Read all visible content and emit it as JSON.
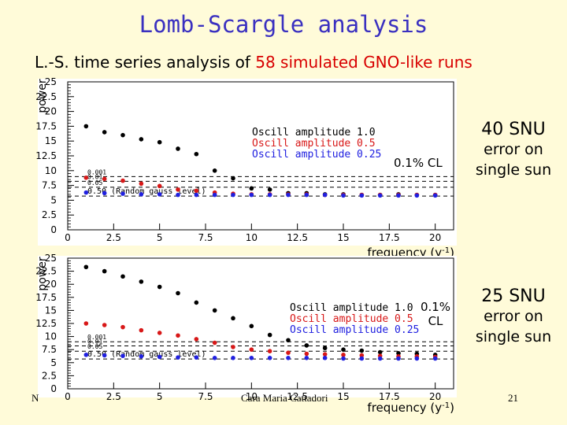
{
  "slide": {
    "title": "Lomb-Scargle analysis",
    "subtitle_prefix": "L.-S. time series analysis of ",
    "subtitle_highlight": "58 simulated GNO-like runs",
    "footer_left": "N",
    "footer_mid": "Cara Maria Cattadori",
    "footer_right": "21"
  },
  "panels": [
    {
      "label_snu": "40 SNU",
      "label_error_1": "error on",
      "label_error_2": "single sun",
      "cl_label": "0.1% CL"
    },
    {
      "label_snu": "25 SNU",
      "label_error_1": "error on",
      "label_error_2": "single sun",
      "cl_label_1": "0.1%",
      "cl_label_2": "CL"
    }
  ],
  "chart_data": [
    {
      "type": "scatter",
      "xlabel": "frequency (y-1)",
      "ylabel": "power",
      "xlim": [
        0,
        21
      ],
      "ylim": [
        0,
        25
      ],
      "xticks": [
        "0",
        "2.5",
        "5",
        "7.5",
        "10",
        "12.5",
        "15",
        "17.5",
        "20"
      ],
      "yticks": [
        "0",
        "2.5",
        "5",
        "7.5",
        "10",
        "12.5",
        "15",
        "17.5",
        "20",
        "22.5",
        "25"
      ],
      "legend_position": "top-right",
      "colors": {
        "a1": "#000000",
        "a05": "#d81818",
        "a025": "#2020e0"
      },
      "series": [
        {
          "name": "Oscill amplitude 1.0",
          "x": [
            1,
            2,
            3,
            4,
            5,
            6,
            7,
            8,
            9,
            10,
            11,
            12,
            13,
            14,
            15,
            16,
            17,
            18,
            19,
            20
          ],
          "values": [
            17.5,
            16.5,
            16.0,
            15.3,
            14.8,
            13.7,
            12.8,
            10.0,
            8.7,
            7.0,
            6.8,
            6.2,
            6.2,
            6.0,
            6.0,
            5.9,
            5.9,
            6.0,
            5.9,
            5.9
          ]
        },
        {
          "name": "Oscill amplitude 0.5",
          "x": [
            1,
            2,
            3,
            4,
            5,
            6,
            7,
            8,
            9,
            10,
            11,
            12,
            13,
            14,
            15,
            16,
            17,
            18,
            19,
            20
          ],
          "values": [
            8.8,
            8.6,
            8.3,
            7.8,
            7.4,
            6.8,
            6.6,
            6.3,
            6.1,
            6.0,
            6.0,
            6.0,
            6.0,
            5.9,
            5.9,
            5.9,
            5.9,
            5.9,
            5.9,
            5.9
          ]
        },
        {
          "name": "Oscill amplitude 0.25",
          "x": [
            1,
            2,
            3,
            4,
            5,
            6,
            7,
            8,
            9,
            10,
            11,
            12,
            13,
            14,
            15,
            16,
            17,
            18,
            19,
            20
          ],
          "values": [
            6.3,
            6.2,
            6.1,
            6.0,
            6.0,
            5.9,
            5.9,
            5.9,
            5.9,
            5.9,
            5.9,
            5.9,
            5.9,
            5.9,
            5.8,
            5.8,
            5.8,
            5.8,
            5.8,
            5.8
          ]
        }
      ],
      "reference_lines": [
        {
          "label": "0.001",
          "y": 9.0
        },
        {
          "label": "0.01",
          "y": 8.2
        },
        {
          "label": "0.05",
          "y": 7.2
        },
        {
          "label": "0.50 (Random gauss level)",
          "y": 5.7
        }
      ]
    },
    {
      "type": "scatter",
      "xlabel": "frequency (y-1)",
      "ylabel": "power",
      "xlim": [
        0,
        21
      ],
      "ylim": [
        0,
        25
      ],
      "xticks": [
        "0",
        "2.5",
        "5",
        "7.5",
        "10",
        "12.5",
        "15",
        "17.5",
        "20"
      ],
      "yticks": [
        "0",
        "2.5",
        "5",
        "7.5",
        "10",
        "12.5",
        "15",
        "17.5",
        "20",
        "22.5",
        "25"
      ],
      "legend_position": "top-right",
      "colors": {
        "a1": "#000000",
        "a05": "#d81818",
        "a025": "#2020e0"
      },
      "series": [
        {
          "name": "Oscill amplitude 1.0",
          "x": [
            1,
            2,
            3,
            4,
            5,
            6,
            7,
            8,
            9,
            10,
            11,
            12,
            13,
            14,
            15,
            16,
            17,
            18,
            19,
            20
          ],
          "values": [
            23.3,
            22.5,
            21.5,
            20.5,
            19.5,
            18.3,
            16.5,
            15.0,
            13.5,
            12.0,
            10.3,
            9.3,
            8.3,
            7.8,
            7.5,
            7.3,
            7.0,
            6.8,
            6.7,
            6.5
          ]
        },
        {
          "name": "Oscill amplitude 0.5",
          "x": [
            1,
            2,
            3,
            4,
            5,
            6,
            7,
            8,
            9,
            10,
            11,
            12,
            13,
            14,
            15,
            16,
            17,
            18,
            19,
            20
          ],
          "values": [
            12.5,
            12.2,
            11.8,
            11.2,
            10.7,
            10.2,
            9.5,
            8.8,
            8.0,
            7.5,
            7.2,
            6.9,
            6.7,
            6.6,
            6.5,
            6.4,
            6.3,
            6.2,
            6.2,
            6.1
          ]
        },
        {
          "name": "Oscill amplitude 0.25",
          "x": [
            1,
            2,
            3,
            4,
            5,
            6,
            7,
            8,
            9,
            10,
            11,
            12,
            13,
            14,
            15,
            16,
            17,
            18,
            19,
            20
          ],
          "values": [
            6.5,
            6.4,
            6.3,
            6.2,
            6.1,
            6.0,
            6.0,
            5.9,
            5.9,
            5.9,
            5.9,
            5.9,
            5.9,
            5.9,
            5.8,
            5.8,
            5.8,
            5.8,
            5.8,
            5.8
          ]
        }
      ],
      "reference_lines": [
        {
          "label": "0.001",
          "y": 9.0
        },
        {
          "label": "0.01",
          "y": 8.2
        },
        {
          "label": "0.05",
          "y": 7.2
        },
        {
          "label": "0.50 (Random gauss level)",
          "y": 5.7
        }
      ]
    }
  ]
}
